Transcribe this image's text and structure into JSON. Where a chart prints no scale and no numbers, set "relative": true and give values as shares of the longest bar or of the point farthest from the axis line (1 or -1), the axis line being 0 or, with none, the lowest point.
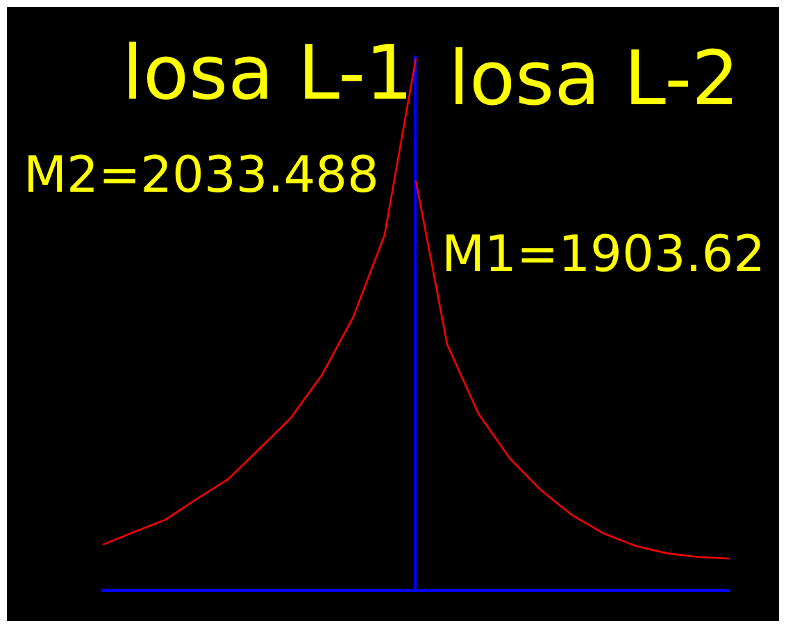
{
  "chart_data": {
    "type": "line",
    "relative": true,
    "marker": "none",
    "line_style": "solid",
    "annotations": [
      "losa L-1",
      "losa L-2",
      "M2=2033.488",
      "M1=1903.62"
    ],
    "categories": [
      null,
      null,
      null,
      null,
      null,
      null,
      null,
      null,
      null,
      null,
      null,
      null,
      null,
      null,
      null,
      null,
      null,
      null,
      null,
      null,
      null
    ],
    "series": [
      {
        "color": "#ff0000",
        "values": [
          0.086,
          0.11,
          0.133,
          0.172,
          0.209,
          0.266,
          0.324,
          0.405,
          0.514,
          0.668,
          1,
          null,
          null,
          null,
          null,
          null,
          null,
          null,
          null,
          null,
          null
        ]
      },
      {
        "color": "#ff0000",
        "values": [
          null,
          null,
          null,
          null,
          null,
          null,
          null,
          null,
          null,
          null,
          0.77,
          0.462,
          0.332,
          0.248,
          0.188,
          0.141,
          0.107,
          0.084,
          0.07,
          0.063,
          0.06
        ]
      }
    ]
  }
}
